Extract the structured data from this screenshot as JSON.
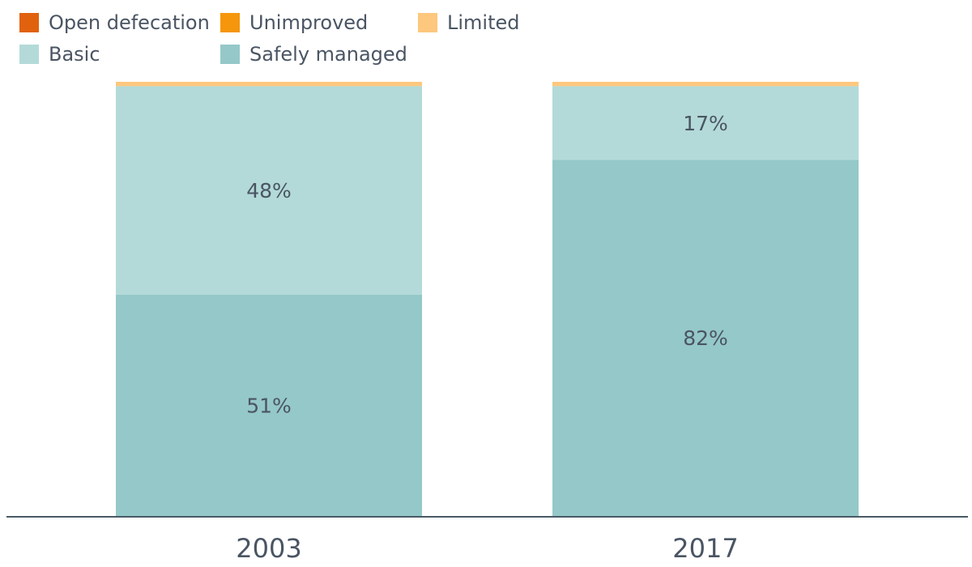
{
  "chart_data": {
    "type": "bar",
    "stacked": true,
    "categories": [
      "2003",
      "2017"
    ],
    "series": [
      {
        "name": "Open defecation",
        "color": "#e0620e",
        "values": [
          0,
          0
        ]
      },
      {
        "name": "Unimproved",
        "color": "#f5960c",
        "values": [
          0,
          0
        ]
      },
      {
        "name": "Limited",
        "color": "#fdc77d",
        "values": [
          1,
          1
        ]
      },
      {
        "name": "Basic",
        "color": "#b3dad8",
        "values": [
          48,
          17
        ]
      },
      {
        "name": "Safely managed",
        "color": "#95c8c8",
        "values": [
          51,
          82
        ]
      }
    ],
    "data_labels": {
      "Basic": [
        "48%",
        "17%"
      ],
      "Safely managed": [
        "51%",
        "82%"
      ]
    },
    "ylim": [
      0,
      100
    ],
    "legend_position": "top-left",
    "grid": false
  }
}
